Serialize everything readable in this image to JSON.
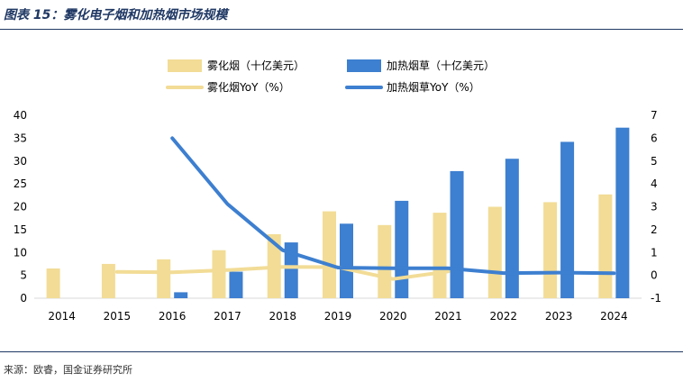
{
  "title": "图表 15：雾化电子烟和加热烟市场规模",
  "source": "来源：欧睿，国金证券研究所",
  "colors": {
    "ecig": "#f2dc96",
    "heated": "#3d7fd0",
    "title": "#1f3864"
  },
  "chart_data": {
    "type": "bar",
    "categories": [
      "2014",
      "2015",
      "2016",
      "2017",
      "2018",
      "2019",
      "2020",
      "2021",
      "2022",
      "2023",
      "2024"
    ],
    "series": [
      {
        "name": "雾化烟（十亿美元）",
        "type": "bar",
        "axis": "left",
        "values": [
          6.5,
          7.5,
          8.5,
          10.5,
          14.0,
          19.0,
          16.0,
          18.7,
          20.0,
          21.0,
          22.7
        ]
      },
      {
        "name": "加热烟草（十亿美元）",
        "type": "bar",
        "axis": "left",
        "values": [
          null,
          null,
          1.3,
          5.8,
          12.2,
          16.3,
          21.3,
          27.8,
          30.5,
          34.2,
          37.3
        ]
      },
      {
        "name": "雾化烟YoY（%）",
        "type": "line",
        "axis": "right",
        "values": [
          null,
          0.15,
          0.13,
          0.23,
          0.37,
          0.36,
          -0.16,
          0.17,
          null,
          null,
          null
        ]
      },
      {
        "name": "加热烟草YoY（%）",
        "type": "line",
        "axis": "right",
        "values": [
          null,
          null,
          6.0,
          3.12,
          1.1,
          0.34,
          0.31,
          0.31,
          0.1,
          0.12,
          0.09
        ]
      }
    ],
    "y_left": {
      "min": 0,
      "max": 40,
      "ticks": [
        "0",
        "5",
        "10",
        "15",
        "20",
        "25",
        "30",
        "35",
        "40"
      ]
    },
    "y_right": {
      "min": -1,
      "max": 7,
      "ticks": [
        "-1",
        "0",
        "1",
        "2",
        "3",
        "4",
        "5",
        "6",
        "7"
      ]
    },
    "legend_position": "top"
  }
}
